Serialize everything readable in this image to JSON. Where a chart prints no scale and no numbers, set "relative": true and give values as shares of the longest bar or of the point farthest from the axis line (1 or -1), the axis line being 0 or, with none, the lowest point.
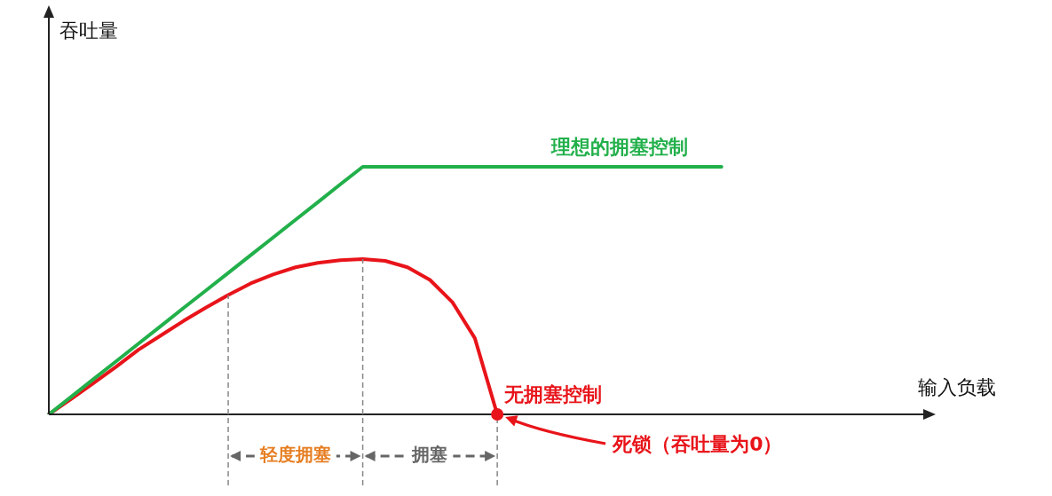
{
  "chart_data": {
    "type": "line",
    "relative": true,
    "xlabel": "输入负载",
    "grid": false,
    "legend": false,
    "marker": "none",
    "line_style": "solid",
    "categories": [
      null,
      null,
      null,
      null,
      null,
      null,
      null,
      null,
      null,
      null,
      null,
      null,
      null,
      null,
      null,
      null,
      null,
      null,
      null,
      null,
      null,
      null,
      null,
      null,
      null,
      null,
      null,
      null,
      null,
      null,
      null,
      null,
      null,
      null,
      null,
      null,
      null,
      null,
      null,
      null
    ],
    "series": [
      {
        "name": "理想的拥塞控制",
        "color": "#22b04b",
        "values": [
          0,
          0.071,
          0.143,
          0.214,
          0.286,
          0.357,
          0.429,
          0.5,
          0.571,
          0.643,
          0.714,
          0.786,
          0.857,
          0.929,
          1,
          1,
          1,
          1,
          1,
          1,
          1,
          1,
          1,
          1,
          1,
          1,
          1,
          1,
          1,
          1,
          1,
          null,
          null,
          null,
          null,
          null,
          null,
          null,
          null,
          null
        ]
      },
      {
        "name": "无拥塞控制",
        "color": "#e8141a",
        "values": [
          0,
          0.062,
          0.127,
          0.192,
          0.261,
          0.319,
          0.377,
          0.431,
          0.482,
          0.529,
          0.565,
          0.594,
          0.612,
          0.623,
          0.627,
          0.62,
          0.594,
          0.543,
          0.453,
          0.308,
          0,
          null,
          null,
          null,
          null,
          null,
          null,
          null,
          null,
          null,
          null,
          null,
          null,
          null,
          null,
          null,
          null,
          null,
          null,
          null
        ]
      }
    ],
    "annotations": [
      "吞吐量",
      "轻度拥塞",
      "拥塞",
      "死锁（吞吐量为0）"
    ]
  }
}
